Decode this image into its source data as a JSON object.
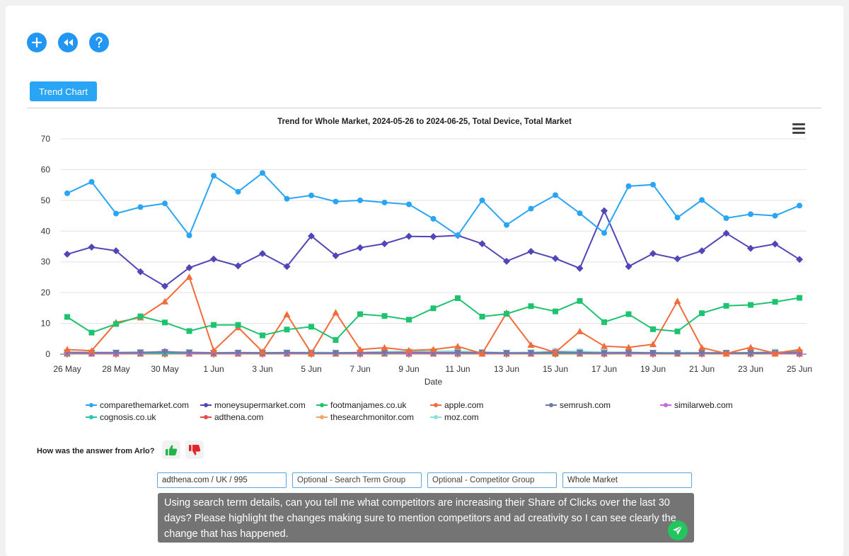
{
  "toolbar": {
    "add_icon": "plus-icon",
    "rewind_icon": "rewind-icon",
    "help_icon": "help-icon",
    "accent": "#2196f3"
  },
  "tab": {
    "label": "Trend Chart"
  },
  "chart_data": {
    "type": "line",
    "title": "Trend for Whole Market, 2024-05-26 to 2024-06-25, Total Device, Total Market",
    "xlabel": "Date",
    "ylabel": "",
    "ylim": [
      0,
      70
    ],
    "yticks": [
      "0",
      "10",
      "20",
      "30",
      "40",
      "50",
      "60",
      "70"
    ],
    "xtick_labels": [
      "26 May",
      "28 May",
      "30 May",
      "1 Jun",
      "3 Jun",
      "5 Jun",
      "7 Jun",
      "9 Jun",
      "11 Jun",
      "13 Jun",
      "15 Jun",
      "17 Jun",
      "19 Jun",
      "21 Jun",
      "23 Jun",
      "25 Jun"
    ],
    "x": [
      "2024-05-26",
      "2024-05-27",
      "2024-05-28",
      "2024-05-29",
      "2024-05-30",
      "2024-05-31",
      "2024-06-01",
      "2024-06-02",
      "2024-06-03",
      "2024-06-04",
      "2024-06-05",
      "2024-06-06",
      "2024-06-07",
      "2024-06-08",
      "2024-06-09",
      "2024-06-10",
      "2024-06-11",
      "2024-06-12",
      "2024-06-13",
      "2024-06-14",
      "2024-06-15",
      "2024-06-16",
      "2024-06-17",
      "2024-06-18",
      "2024-06-19",
      "2024-06-20",
      "2024-06-21",
      "2024-06-22",
      "2024-06-23",
      "2024-06-24",
      "2024-06-25"
    ],
    "grid": true,
    "legend_position": "bottom",
    "series": [
      {
        "name": "comparethemarket.com",
        "color": "#2aa5f5",
        "marker": "circle",
        "values": [
          52.3,
          56,
          45.7,
          47.8,
          49,
          38.6,
          58,
          52.8,
          58.9,
          50.5,
          51.6,
          49.6,
          50,
          49.3,
          48.7,
          44,
          38.6,
          50,
          42,
          47.3,
          51.7,
          45.8,
          39.4,
          54.6,
          55.1,
          44.4,
          50.1,
          44.2,
          45.5,
          45,
          48.3
        ]
      },
      {
        "name": "moneysupermarket.com",
        "color": "#5046b8",
        "marker": "diamond",
        "values": [
          32.5,
          34.8,
          33.6,
          26.8,
          22.1,
          28.1,
          30.9,
          28.7,
          32.7,
          28.5,
          38.4,
          32,
          34.6,
          35.9,
          38.3,
          38.2,
          38.6,
          35.9,
          30.2,
          33.4,
          31.1,
          27.9,
          46.6,
          28.5,
          32.7,
          31,
          33.6,
          39.3,
          34.4,
          35.8,
          30.8
        ]
      },
      {
        "name": "footmanjames.co.uk",
        "color": "#1ec36f",
        "marker": "square",
        "values": [
          12.1,
          7,
          9.8,
          12.3,
          10.3,
          7.5,
          9.5,
          9.5,
          6.1,
          8,
          8.9,
          4.6,
          13,
          12.4,
          11.2,
          14.9,
          18.2,
          12.2,
          13.1,
          15.6,
          13.9,
          17.3,
          10.4,
          13,
          8.1,
          7.4,
          13.3,
          15.7,
          16,
          17,
          18.3
        ]
      },
      {
        "name": "apple.com",
        "color": "#f26b3a",
        "marker": "triangle",
        "values": [
          1.5,
          1.1,
          10.3,
          11.9,
          17.1,
          25.1,
          1.2,
          8.7,
          0.8,
          12.9,
          0.3,
          13.5,
          1.5,
          2.1,
          1.2,
          1.5,
          2.5,
          0.2,
          13.4,
          3,
          0.6,
          7.4,
          2.6,
          2.2,
          3.2,
          17.2,
          2.1,
          0.2,
          2.2,
          0.3,
          1.5
        ]
      },
      {
        "name": "semrush.com",
        "color": "#6b7aa5",
        "marker": "triangle-down",
        "values": [
          0.6,
          0.5,
          0.5,
          0.6,
          0.7,
          0.6,
          0.4,
          0.5,
          0.4,
          0.5,
          0.4,
          0.4,
          0.5,
          0.5,
          0.6,
          0.5,
          0.5,
          0.5,
          0.4,
          0.4,
          0.5,
          0.5,
          0.4,
          0.5,
          0.4,
          0.3,
          0.4,
          0.4,
          0.4,
          0.5,
          0.5
        ]
      },
      {
        "name": "similarweb.com",
        "color": "#c26ad6",
        "marker": "diamond",
        "values": [
          0.4,
          0.3,
          0.3,
          0.4,
          0.9,
          0.3,
          0.3,
          0.3,
          0.4,
          0.3,
          0.3,
          0.3,
          0.3,
          0.4,
          0.3,
          0.3,
          0.4,
          0.3,
          0.3,
          0.3,
          0.8,
          0.4,
          0.3,
          0.3,
          0.3,
          0.3,
          0.3,
          0.3,
          0.4,
          0.3,
          0.3
        ]
      },
      {
        "name": "cognosis.co.uk",
        "color": "#28c4b0",
        "marker": "circle",
        "values": [
          0.3,
          0.3,
          0.3,
          0.3,
          0.3,
          0.3,
          0.3,
          0.3,
          0.3,
          0.3,
          0.3,
          0.3,
          0.3,
          0.3,
          0.3,
          0.3,
          0.3,
          0.3,
          0.3,
          0.3,
          0.3,
          0.3,
          0.3,
          0.3,
          0.3,
          0.3,
          0.3,
          0.3,
          0.3,
          0.3,
          0.9
        ]
      },
      {
        "name": "adthena.com",
        "color": "#e64a4a",
        "marker": "square",
        "values": [
          0.2,
          0.2,
          0.2,
          0.2,
          0.2,
          0.2,
          0.2,
          0.2,
          0.2,
          0.2,
          0.2,
          0.2,
          0.2,
          0.2,
          0.2,
          0.2,
          0.2,
          0.2,
          0.2,
          0.2,
          0.2,
          0.2,
          0.2,
          0.2,
          0.2,
          0.2,
          0.2,
          0.2,
          0.2,
          0.2,
          0.2
        ]
      },
      {
        "name": "thesearchmonitor.com",
        "color": "#f2a56b",
        "marker": "triangle",
        "values": [
          0.1,
          0.1,
          0.1,
          0.1,
          0.1,
          0.1,
          0.1,
          0.1,
          0.1,
          0.1,
          0.1,
          0.1,
          0.1,
          0.1,
          0.1,
          0.1,
          0.1,
          0.1,
          0.1,
          0.1,
          0.1,
          0.1,
          0.1,
          0.1,
          0.1,
          0.1,
          0.1,
          0.1,
          0.1,
          0.1,
          0.1
        ]
      },
      {
        "name": "moz.com",
        "color": "#8fe0d6",
        "marker": "triangle-down",
        "values": [
          0.5,
          0.5,
          0.5,
          0.5,
          0.5,
          0.5,
          0.5,
          0.5,
          0.5,
          0.5,
          0.6,
          0.5,
          0.5,
          0.8,
          0.9,
          1,
          1,
          0.7,
          0.5,
          0.6,
          1,
          0.9,
          0.7,
          0.6,
          0.5,
          0.5,
          0.5,
          0.5,
          0.5,
          0.8,
          0.5
        ]
      }
    ]
  },
  "feedback": {
    "question": "How was the answer from Arlo?",
    "thumbs_up_icon": "thumbs-up-icon",
    "thumbs_down_icon": "thumbs-down-icon"
  },
  "filters": {
    "account": "adthena.com / UK / 995",
    "search_term_group_placeholder": "Optional - Search Term Group",
    "competitor_group_placeholder": "Optional - Competitor Group",
    "market": "Whole Market"
  },
  "query": {
    "text": "Using search term details, can you tell me what competitors are increasing their Share of Clicks over the last 30 days? Please highlight the changes making sure to mention competitors and ad creativity so I can see clearly the change that has happened.",
    "send_icon": "send-icon"
  }
}
